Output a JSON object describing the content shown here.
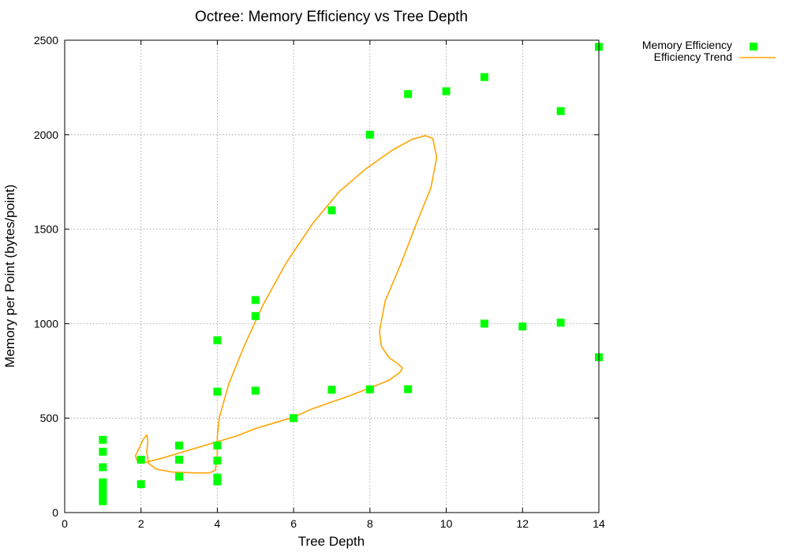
{
  "chart_data": {
    "type": "scatter",
    "title": "Octree: Memory Efficiency vs Tree Depth",
    "xlabel": "Tree Depth",
    "ylabel": "Memory per Point (bytes/point)",
    "xlim": [
      0,
      14
    ],
    "ylim": [
      0,
      2500
    ],
    "xticks": [
      0,
      2,
      4,
      6,
      8,
      10,
      12,
      14
    ],
    "yticks": [
      0,
      500,
      1000,
      1500,
      2000,
      2500
    ],
    "grid": true,
    "legend_position": "top-right",
    "series": [
      {
        "name": "Memory Efficiency",
        "kind": "points",
        "color": "#00ff00",
        "points": [
          [
            1,
            385
          ],
          [
            1,
            322
          ],
          [
            1,
            240
          ],
          [
            1,
            160
          ],
          [
            1,
            135
          ],
          [
            1,
            108
          ],
          [
            1,
            80
          ],
          [
            1,
            60
          ],
          [
            2,
            280
          ],
          [
            2,
            150
          ],
          [
            3,
            355
          ],
          [
            3,
            280
          ],
          [
            3,
            190
          ],
          [
            4,
            912
          ],
          [
            4,
            640
          ],
          [
            4,
            355
          ],
          [
            4,
            275
          ],
          [
            4,
            185
          ],
          [
            4,
            165
          ],
          [
            5,
            1125
          ],
          [
            5,
            1040
          ],
          [
            5,
            645
          ],
          [
            6,
            500
          ],
          [
            7,
            1600
          ],
          [
            7,
            650
          ],
          [
            8,
            2000
          ],
          [
            8,
            652
          ],
          [
            9,
            2215
          ],
          [
            9,
            653
          ],
          [
            10,
            2230
          ],
          [
            11,
            2305
          ],
          [
            11,
            1000
          ],
          [
            12,
            985
          ],
          [
            13,
            2125
          ],
          [
            13,
            1005
          ],
          [
            14,
            2465
          ],
          [
            14,
            822
          ]
        ]
      },
      {
        "name": "Efficiency Trend",
        "kind": "line",
        "color": "#ffa500",
        "points": [
          [
            1.85,
            300
          ],
          [
            1.95,
            340
          ],
          [
            2.05,
            385
          ],
          [
            2.15,
            412
          ],
          [
            2.18,
            380
          ],
          [
            2.15,
            320
          ],
          [
            2.2,
            260
          ],
          [
            2.4,
            230
          ],
          [
            2.8,
            215
          ],
          [
            3.4,
            210
          ],
          [
            3.8,
            210
          ],
          [
            3.95,
            225
          ],
          [
            4.0,
            300
          ],
          [
            4.0,
            400
          ],
          [
            4.05,
            500
          ],
          [
            4.3,
            680
          ],
          [
            4.7,
            880
          ],
          [
            5.2,
            1100
          ],
          [
            5.8,
            1320
          ],
          [
            6.5,
            1530
          ],
          [
            7.2,
            1700
          ],
          [
            7.9,
            1820
          ],
          [
            8.6,
            1920
          ],
          [
            9.1,
            1975
          ],
          [
            9.45,
            1995
          ],
          [
            9.65,
            1980
          ],
          [
            9.75,
            1880
          ],
          [
            9.6,
            1720
          ],
          [
            9.2,
            1520
          ],
          [
            8.8,
            1310
          ],
          [
            8.4,
            1120
          ],
          [
            8.25,
            960
          ],
          [
            8.3,
            880
          ],
          [
            8.5,
            820
          ],
          [
            8.75,
            785
          ],
          [
            8.85,
            765
          ],
          [
            8.8,
            745
          ],
          [
            8.5,
            700
          ],
          [
            8.0,
            660
          ],
          [
            7.5,
            620
          ],
          [
            7.0,
            585
          ],
          [
            6.5,
            550
          ],
          [
            6.0,
            505
          ],
          [
            5.5,
            475
          ],
          [
            5.0,
            445
          ],
          [
            4.5,
            405
          ],
          [
            4.0,
            375
          ],
          [
            3.5,
            345
          ],
          [
            3.0,
            315
          ],
          [
            2.5,
            285
          ],
          [
            2.1,
            265
          ],
          [
            1.9,
            275
          ],
          [
            1.85,
            300
          ]
        ]
      }
    ]
  }
}
